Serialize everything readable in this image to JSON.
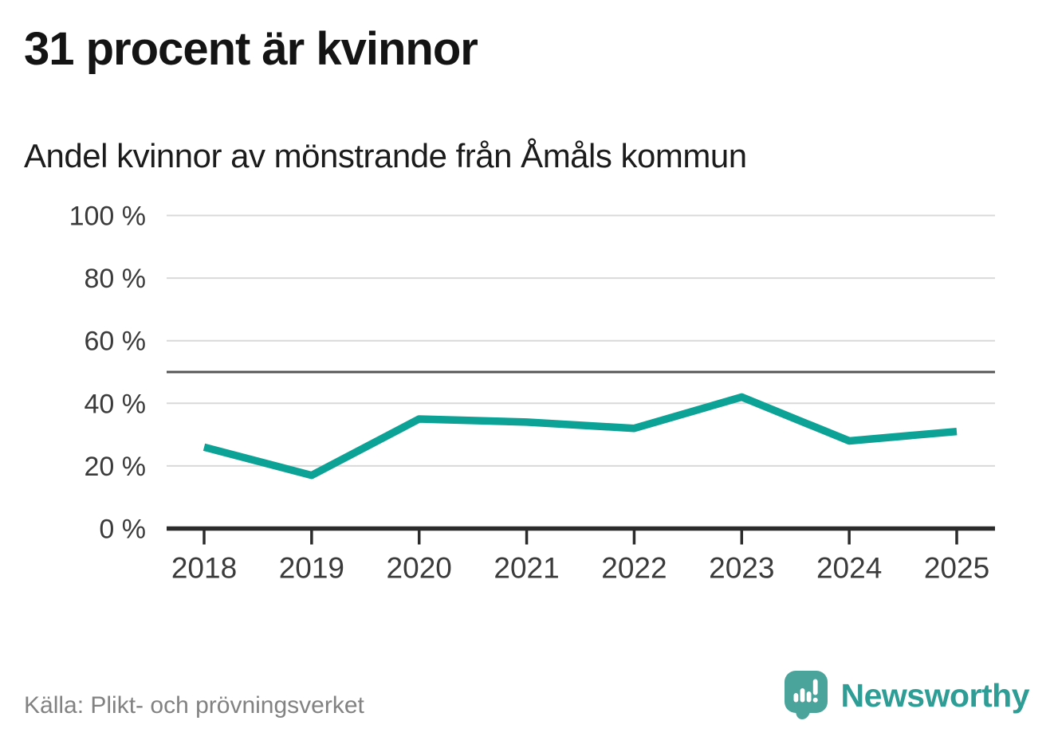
{
  "title": "31 procent är kvinnor",
  "subtitle": "Andel kvinnor av mönstrande från Åmåls kommun",
  "source": "Källa: Plikt- och prövningsverket",
  "branding": {
    "name": "Newsworthy"
  },
  "colors": {
    "line": "#0ca295",
    "grid": "#d9d9d9",
    "reference_line": "#565656",
    "axis": "#2b2b2b",
    "axis_text": "#3b3b3b",
    "title_text": "#141414",
    "muted_text": "#828282",
    "brand": "#2e9d95",
    "brand_icon": "#4aa49b"
  },
  "chart_data": {
    "type": "line",
    "title": "31 procent är kvinnor",
    "subtitle": "Andel kvinnor av mönstrande från Åmåls kommun",
    "x": [
      "2018",
      "2019",
      "2020",
      "2021",
      "2022",
      "2023",
      "2024",
      "2025"
    ],
    "series": [
      {
        "name": "Andel kvinnor av mönstrande",
        "values": [
          26,
          17,
          35,
          34,
          32,
          42,
          28,
          31
        ]
      }
    ],
    "xlabel": "",
    "ylabel": "",
    "ylim": [
      0,
      100
    ],
    "yticks": [
      0,
      20,
      40,
      60,
      80,
      100
    ],
    "ytick_suffix": " %",
    "reference_line": 50,
    "grid": true,
    "legend": false
  }
}
